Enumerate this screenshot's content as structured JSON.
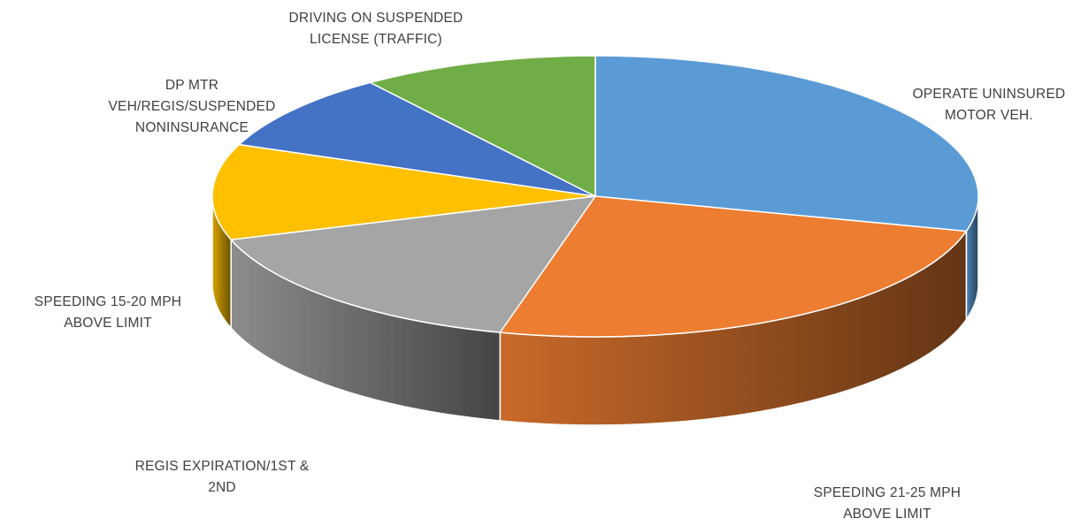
{
  "chart_data": {
    "type": "pie",
    "title": "",
    "slices": [
      {
        "label": "OPERATE UNINSURED MOTOR VEH.",
        "value": 29,
        "color": "#5B9BD5",
        "label_lines": [
          "OPERATE UNINSURED",
          "MOTOR VEH."
        ]
      },
      {
        "label": "SPEEDING 21-25 MPH ABOVE LIMIT",
        "value": 25,
        "color": "#ED7D31",
        "label_lines": [
          "SPEEDING 21-25 MPH",
          "ABOVE LIMIT"
        ]
      },
      {
        "label": "REGIS EXPIRATION/1ST & 2ND",
        "value": 16,
        "color": "#A5A5A5",
        "label_lines": [
          "REGIS EXPIRATION/1ST &",
          "2ND"
        ]
      },
      {
        "label": "SPEEDING 15-20 MPH ABOVE LIMIT",
        "value": 11,
        "color": "#FFC000",
        "label_lines": [
          "SPEEDING 15-20 MPH",
          "ABOVE LIMIT"
        ]
      },
      {
        "label": "DP MTR VEH/REGIS/SUSPENDED NONINSURANCE",
        "value": 9,
        "color": "#4472C4",
        "label_lines": [
          "DP MTR",
          "VEH/REGIS/SUSPENDED",
          "NONINSURANCE"
        ]
      },
      {
        "label": "DRIVING ON SUSPENDED LICENSE (TRAFFIC)",
        "value": 10,
        "color": "#70AD47",
        "label_lines": [
          "DRIVING ON SUSPENDED",
          "LICENSE (TRAFFIC)"
        ]
      }
    ]
  }
}
